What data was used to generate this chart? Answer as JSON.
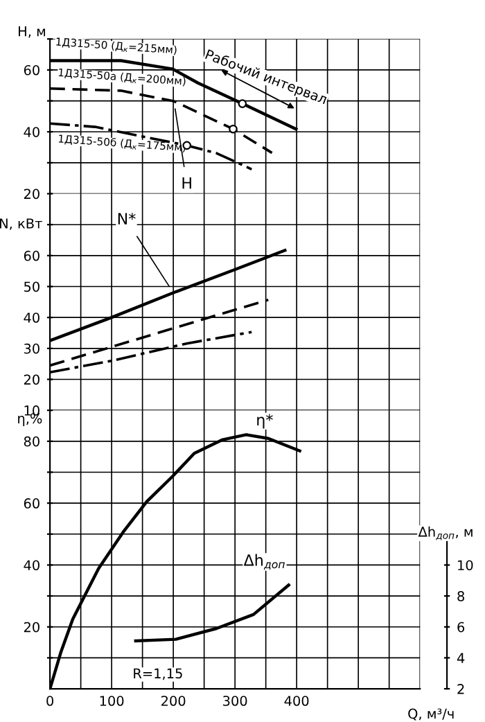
{
  "chart_data": [
    {
      "type": "line",
      "ylabel": "H, м",
      "tick_labels": "y",
      "xlim": [
        0,
        600
      ],
      "xticks": [
        0,
        {
          "value": 50,
          "label": null
        },
        100,
        {
          "value": 150,
          "label": null
        },
        200,
        {
          "value": 250,
          "label": null
        },
        300,
        {
          "value": 350,
          "label": null
        },
        400,
        {
          "value": 450,
          "label": null
        },
        {
          "value": 500,
          "label": null
        },
        {
          "value": 550,
          "label": null
        },
        {
          "value": 600,
          "label": null
        }
      ],
      "ylim": [
        20,
        70
      ],
      "yticks": [
        20,
        {
          "value": 30,
          "label": null
        },
        40,
        {
          "value": 50,
          "label": null
        },
        60,
        {
          "value": 70,
          "label": null
        }
      ],
      "grid": true,
      "series": [
        {
          "name": "1Д315-50 (Д$_{к}$=215мм)",
          "color": "#000000",
          "line_style": "solid",
          "x": [
            0,
            115,
            199,
            240,
            312,
            399
          ],
          "values": [
            63,
            63,
            60.3,
            55.8,
            49.1,
            40.9
          ]
        },
        {
          "name": "1Д315-50а (Д$_{к}$=200мм)",
          "color": "#000000",
          "line_style": "dashed",
          "x": [
            0,
            115,
            201,
            297,
            360
          ],
          "values": [
            54,
            53.3,
            49.9,
            40.9,
            33.2
          ]
        },
        {
          "name": "1Д315-50б (Д$_{к}$=175мм)",
          "color": "#000000",
          "line_style": "dashdot",
          "x": [
            0,
            73,
            222,
            270,
            327
          ],
          "values": [
            42.7,
            41.6,
            35.6,
            33.1,
            27.9
          ]
        },
        {
          "type": "scatter",
          "color": "#000000",
          "marker": "circle",
          "x": [
            312,
            297,
            222
          ],
          "values": [
            49.1,
            40.9,
            35.6
          ]
        }
      ],
      "annotations": [
        {
          "text": "H",
          "x": 201,
          "y": 49.9
        },
        "Рабочий интервал"
      ]
    },
    {
      "type": "line",
      "ylabel": "N, кВт",
      "tick_labels": "y",
      "xlim": [
        0,
        600
      ],
      "xticks": [
        0,
        {
          "value": 50,
          "label": null
        },
        100,
        {
          "value": 150,
          "label": null
        },
        200,
        {
          "value": 250,
          "label": null
        },
        300,
        {
          "value": 350,
          "label": null
        },
        400,
        {
          "value": 450,
          "label": null
        },
        {
          "value": 500,
          "label": null
        },
        {
          "value": 550,
          "label": null
        },
        {
          "value": 600,
          "label": null
        }
      ],
      "ylim": [
        10,
        80
      ],
      "yticks": [
        10,
        20,
        30,
        40,
        50,
        60,
        {
          "value": 70,
          "label": null
        }
      ],
      "grid": true,
      "series": [
        {
          "color": "#000000",
          "line_style": "solid",
          "x": [
            0,
            100,
            200,
            300,
            381
          ],
          "values": [
            32.5,
            40,
            48,
            55.5,
            61.7
          ]
        },
        {
          "color": "#000000",
          "line_style": "dashed",
          "x": [
            0,
            100,
            200,
            258,
            354
          ],
          "values": [
            24.5,
            30.5,
            36.5,
            40,
            45.7
          ]
        },
        {
          "color": "#000000",
          "line_style": "dashdot",
          "x": [
            0,
            100,
            222,
            327
          ],
          "values": [
            22.3,
            26,
            31.6,
            35.3
          ]
        }
      ],
      "annotations": [
        {
          "text": "N*",
          "x": 200,
          "y": 48
        }
      ]
    },
    {
      "type": "line",
      "xlabel": "Q, м³/ч",
      "ylabel": "η,%",
      "y2label": "Δh$_{доп}$, м",
      "xlim": [
        0,
        600
      ],
      "xticks": [
        0,
        {
          "value": 50,
          "label": null
        },
        100,
        {
          "value": 150,
          "label": null
        },
        200,
        {
          "value": 250,
          "label": null
        },
        300,
        {
          "value": 350,
          "label": null
        },
        400,
        {
          "value": 450,
          "label": null
        },
        {
          "value": 500,
          "label": null
        },
        {
          "value": 550,
          "label": null
        },
        {
          "value": 600,
          "label": null
        }
      ],
      "ylim": [
        0,
        90
      ],
      "yticks": [
        {
          "value": 10,
          "label": null
        },
        20,
        {
          "value": 30,
          "label": null
        },
        40,
        {
          "value": 50,
          "label": null
        },
        60,
        {
          "value": 70,
          "label": null
        },
        80
      ],
      "y2lim": [
        2,
        20
      ],
      "y2ticks": [
        2,
        4,
        6,
        8,
        10
      ],
      "grid": true,
      "series": [
        {
          "color": "#000000",
          "line_style": "solid",
          "x": [
            0,
            18,
            37,
            79,
            120,
            157,
            199,
            234,
            280,
            318,
            354,
            405
          ],
          "values": [
            0,
            12,
            22.5,
            38.9,
            51,
            60.5,
            68.7,
            76.1,
            80.5,
            82.1,
            80.9,
            76.9
          ]
        },
        {
          "color": "#000000",
          "axis": "y2",
          "line_style": "solid",
          "x": [
            139,
            204,
            270,
            330,
            387
          ],
          "values": [
            5.1,
            5.2,
            5.9,
            6.8,
            8.7
          ]
        }
      ],
      "annotations": [
        {
          "text": "η*",
          "x": 318,
          "y": 82.1
        },
        "Δh$_{доп}$",
        "R=1,15"
      ]
    }
  ]
}
